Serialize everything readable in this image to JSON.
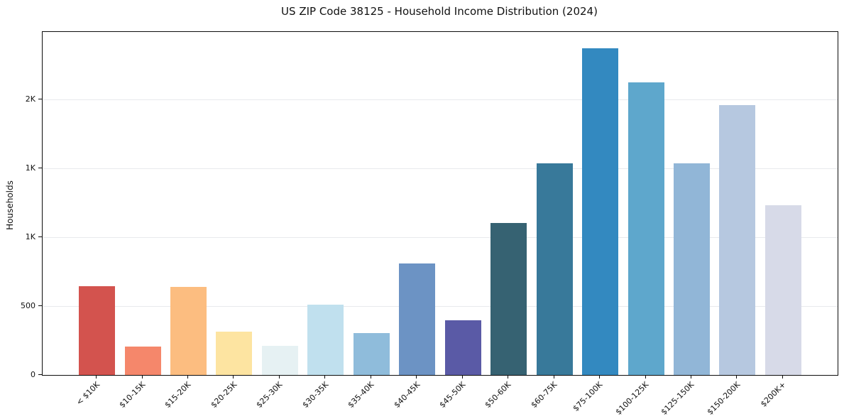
{
  "chart_data": {
    "type": "bar",
    "title": "US ZIP Code 38125 - Household Income Distribution (2024)",
    "xlabel": "",
    "ylabel": "Households",
    "categories": [
      "< $10K",
      "$10-15K",
      "$15-20K",
      "$20-25K",
      "$25-30K",
      "$30-35K",
      "$35-40K",
      "$40-45K",
      "$45-50K",
      "$50-60K",
      "$60-75K",
      "$75-100K",
      "$100-125K",
      "$125-150K",
      "$150-200K",
      "$200K+"
    ],
    "values": [
      643,
      206,
      637,
      316,
      209,
      508,
      306,
      809,
      399,
      1102,
      1538,
      2372,
      2126,
      1538,
      1960,
      1231
    ],
    "bar_colors": [
      "#d3534e",
      "#f5876b",
      "#fcbd80",
      "#fde4a1",
      "#e6f1f3",
      "#c0e0ee",
      "#8fbcdb",
      "#6c93c4",
      "#5a5aa6",
      "#366272",
      "#38799a",
      "#3389c0",
      "#5ea7cc",
      "#91b6d7",
      "#b6c8e0",
      "#d7dae8"
    ],
    "ylim": [
      0,
      2490
    ],
    "yticks": [
      {
        "value": 0,
        "label": "0"
      },
      {
        "value": 500,
        "label": "500"
      },
      {
        "value": 1000,
        "label": "1K"
      },
      {
        "value": 1500,
        "label": "1K"
      },
      {
        "value": 2000,
        "label": "2K"
      }
    ],
    "grid": "horizontal gridlines at y-ticks, drawn behind bars",
    "legend": "none",
    "gridline_color": "#e8eaed",
    "axis_color": "#0d0d0d",
    "text_color": "#111111",
    "background_color": "#ffffff"
  }
}
